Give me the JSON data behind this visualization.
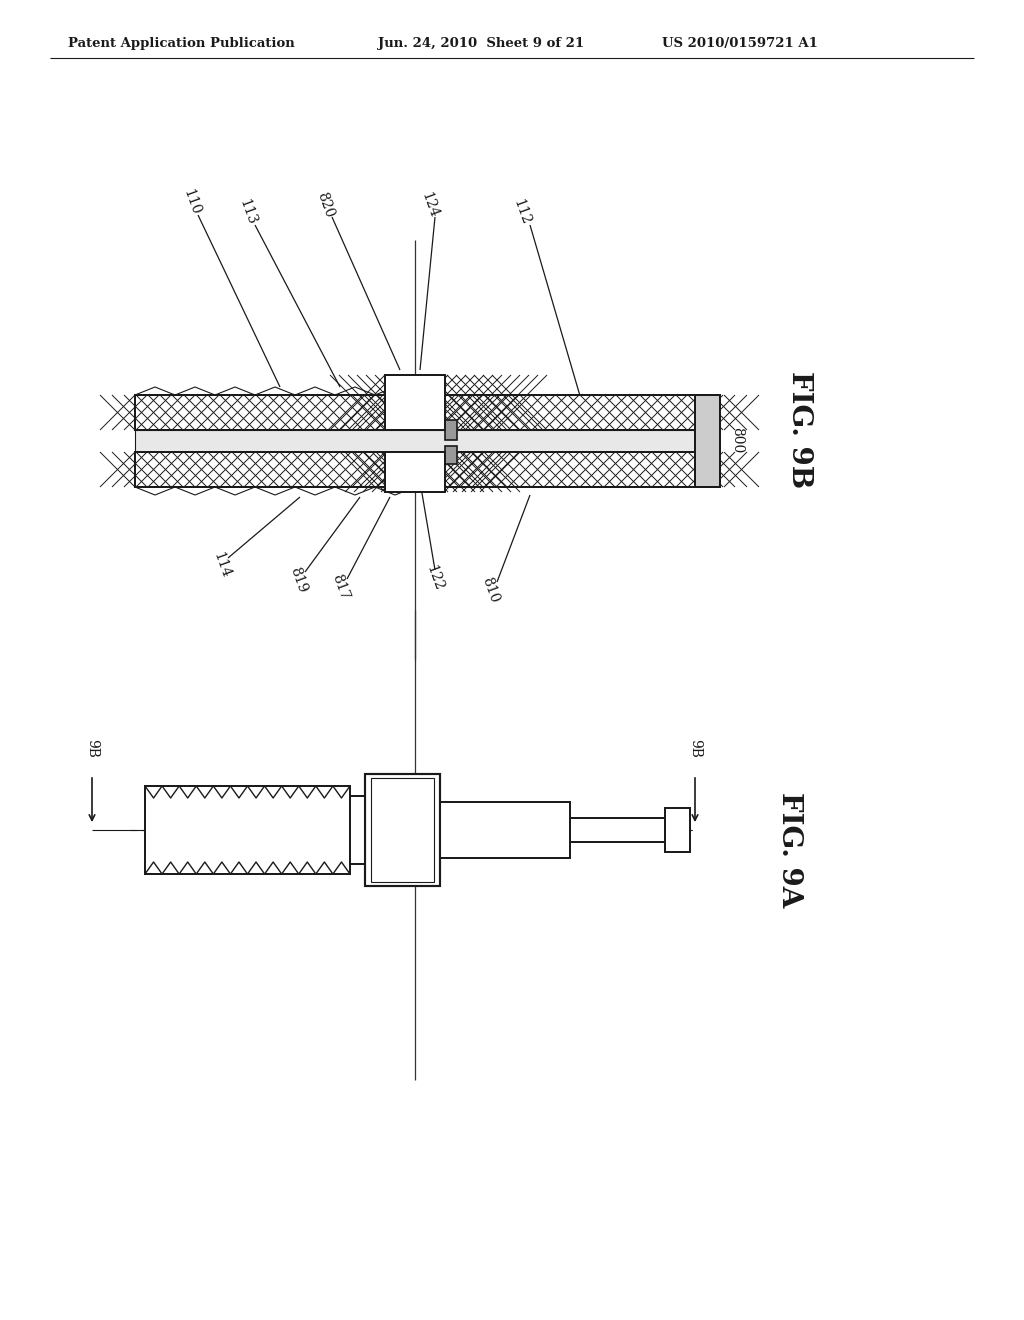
{
  "bg_color": "#ffffff",
  "line_color": "#1a1a1a",
  "header_left": "Patent Application Publication",
  "header_mid": "Jun. 24, 2010  Sheet 9 of 21",
  "header_right": "US 2010/0159721 A1",
  "fig9b_label": "FIG. 9B",
  "fig9a_label": "FIG. 9A",
  "label_800": "800"
}
